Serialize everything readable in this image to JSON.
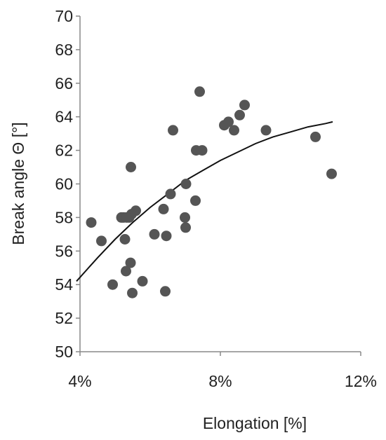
{
  "chart_data": {
    "type": "scatter",
    "xlabel": "Elongation [%]",
    "ylabel": "Break angle Θ [°]",
    "xlim": [
      4,
      12
    ],
    "ylim": [
      50,
      70
    ],
    "x_ticks": [
      4,
      8,
      12
    ],
    "x_tick_labels": [
      "4%",
      "8%",
      "12%"
    ],
    "y_ticks": [
      50,
      52,
      54,
      56,
      58,
      60,
      62,
      64,
      66,
      68,
      70
    ],
    "y_tick_labels": [
      "50",
      "52",
      "54",
      "56",
      "58",
      "60",
      "62",
      "64",
      "66",
      "68",
      "70"
    ],
    "grid": false,
    "legend": "none",
    "point_color": "#555555",
    "trendline_color": "#111111",
    "series": [
      {
        "x": [
          4.32,
          4.61,
          4.93,
          5.18,
          5.24,
          5.28,
          5.31,
          5.4,
          5.44,
          5.45,
          5.49,
          5.59,
          5.78,
          6.12,
          6.38,
          6.43,
          6.46,
          6.58,
          6.65,
          6.99,
          7.01,
          7.02,
          7.29,
          7.31,
          7.41,
          7.48,
          8.11,
          8.23,
          8.39,
          8.55,
          8.69,
          9.3,
          10.71,
          11.17,
          5.47,
          5.33
        ],
        "y": [
          57.7,
          56.6,
          54.0,
          58.0,
          58.0,
          56.7,
          54.8,
          58.0,
          55.3,
          61.0,
          53.5,
          58.4,
          54.2,
          57.0,
          58.5,
          53.6,
          56.9,
          59.4,
          63.2,
          58.0,
          57.4,
          60.0,
          59.0,
          62.0,
          65.5,
          62.0,
          63.5,
          63.7,
          63.2,
          64.1,
          64.7,
          63.2,
          62.8,
          60.6,
          58.2,
          58.0
        ]
      }
    ],
    "trendline": {
      "type": "polynomial",
      "x": [
        3.9,
        4.5,
        5.0,
        5.5,
        6.0,
        6.5,
        7.0,
        7.5,
        8.0,
        8.5,
        9.0,
        9.5,
        10.0,
        10.5,
        11.0,
        11.2
      ],
      "y": [
        54.2,
        55.6,
        56.7,
        57.7,
        58.6,
        59.4,
        60.2,
        60.8,
        61.4,
        61.9,
        62.4,
        62.8,
        63.1,
        63.4,
        63.6,
        63.7
      ]
    }
  }
}
